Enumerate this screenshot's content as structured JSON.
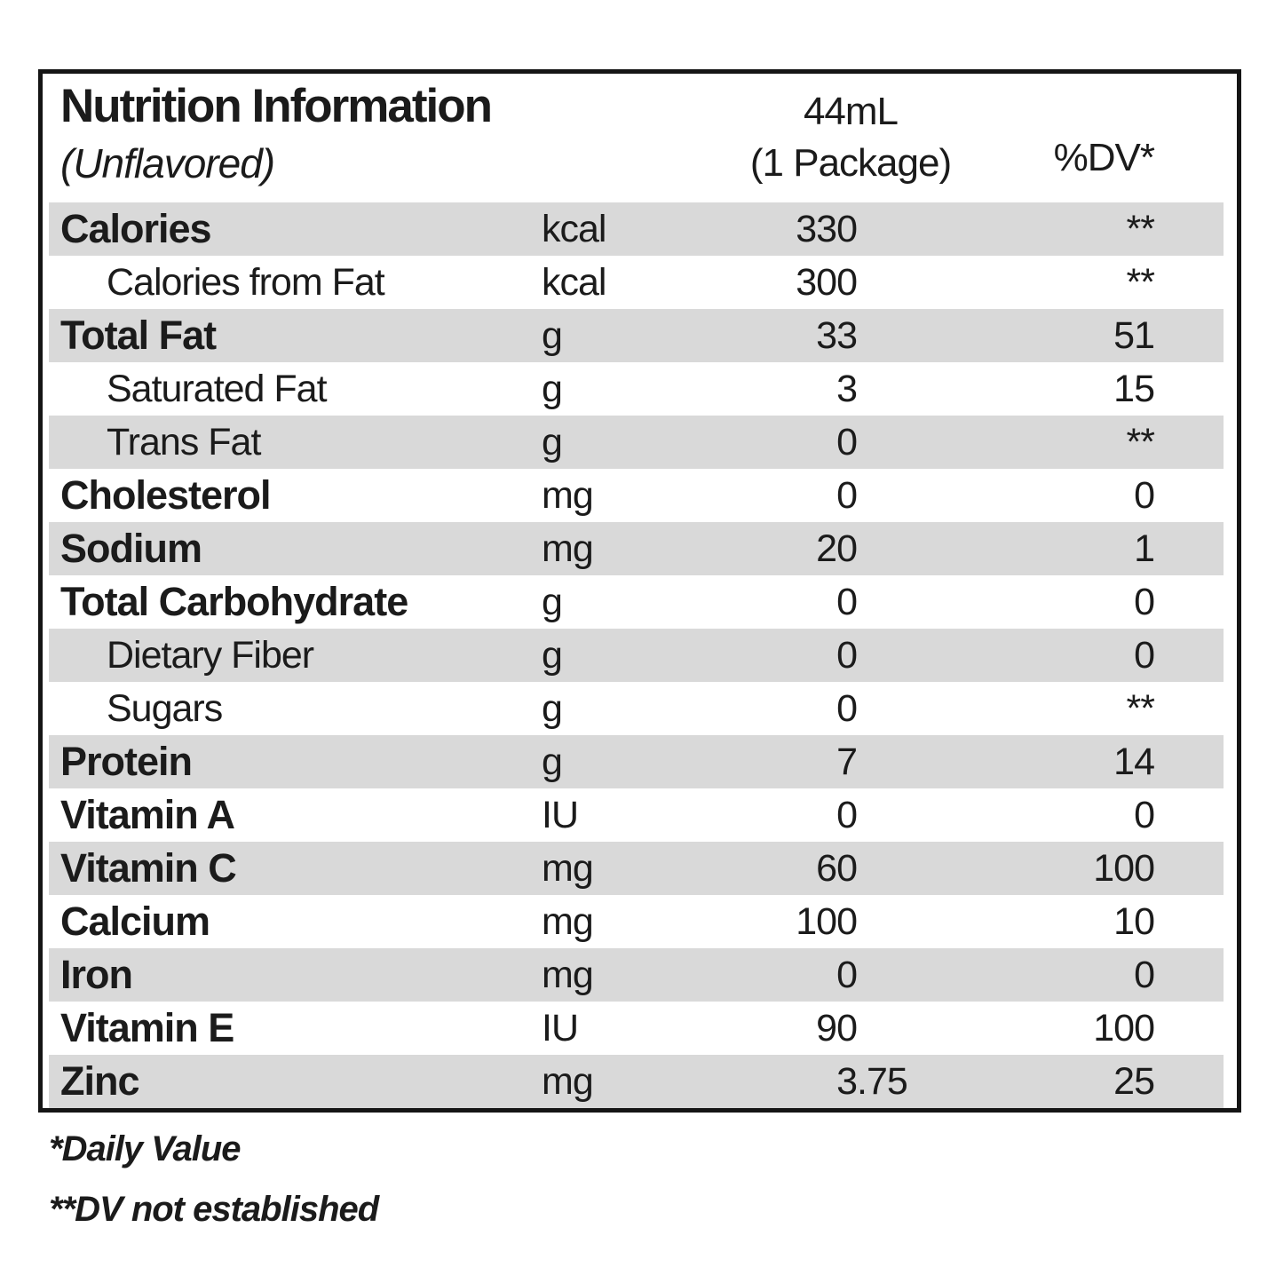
{
  "header": {
    "title": "Nutrition Information",
    "subtitle": "(Unflavored)",
    "serving_line1": "44mL",
    "serving_line2": "(1 Package)",
    "dv_label": "%DV*"
  },
  "table": {
    "columns": [
      "nutrient",
      "unit",
      "amount_per_package",
      "percent_dv"
    ],
    "rows": [
      {
        "name": "Calories",
        "unit": "kcal",
        "amount": "330",
        "dv": "**",
        "indent": false
      },
      {
        "name": "Calories from Fat",
        "unit": "kcal",
        "amount": "300",
        "dv": "**",
        "indent": true
      },
      {
        "name": "Total Fat",
        "unit": "g",
        "amount": "33",
        "dv": "51",
        "indent": false
      },
      {
        "name": "Saturated Fat",
        "unit": "g",
        "amount": "3",
        "dv": "15",
        "indent": true
      },
      {
        "name": "Trans Fat",
        "unit": "g",
        "amount": "0",
        "dv": "**",
        "indent": true
      },
      {
        "name": "Cholesterol",
        "unit": "mg",
        "amount": "0",
        "dv": "0",
        "indent": false
      },
      {
        "name": "Sodium",
        "unit": "mg",
        "amount": "20",
        "dv": "1",
        "indent": false
      },
      {
        "name": "Total Carbohydrate",
        "unit": "g",
        "amount": "0",
        "dv": "0",
        "indent": false
      },
      {
        "name": "Dietary Fiber",
        "unit": "g",
        "amount": "0",
        "dv": "0",
        "indent": true
      },
      {
        "name": "Sugars",
        "unit": "g",
        "amount": "0",
        "dv": "**",
        "indent": true
      },
      {
        "name": "Protein",
        "unit": "g",
        "amount": "7",
        "dv": "14",
        "indent": false
      },
      {
        "name": "Vitamin A",
        "unit": "IU",
        "amount": "0",
        "dv": "0",
        "indent": false
      },
      {
        "name": "Vitamin C",
        "unit": "mg",
        "amount": "60",
        "dv": "100",
        "indent": false
      },
      {
        "name": "Calcium",
        "unit": "mg",
        "amount": "100",
        "dv": "10",
        "indent": false
      },
      {
        "name": "Iron",
        "unit": "mg",
        "amount": "0",
        "dv": "0",
        "indent": false
      },
      {
        "name": "Vitamin E",
        "unit": "IU",
        "amount": "90",
        "dv": "100",
        "indent": false
      },
      {
        "name": "Zinc",
        "unit": "mg",
        "amount": "3.75",
        "dv": "25",
        "indent": false
      }
    ]
  },
  "footnotes": {
    "daily_value": "*Daily Value",
    "dv_not_established": "**DV not established"
  },
  "colors": {
    "row_shade": "#d9d9d9",
    "border": "#151515",
    "text": "#1b1b1b",
    "background": "#ffffff"
  }
}
